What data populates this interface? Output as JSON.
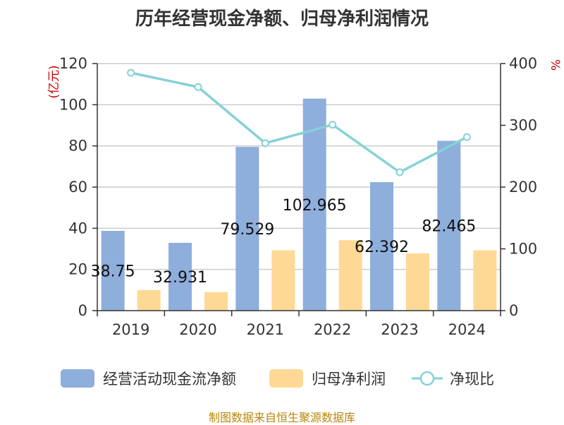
{
  "chart_data": {
    "type": "bar",
    "title": "历年经营现金净额、归母净利润情况",
    "categories": [
      "2019",
      "2020",
      "2021",
      "2022",
      "2023",
      "2024"
    ],
    "series": [
      {
        "name": "经营活动现金流净额",
        "type": "bar",
        "axis": "left",
        "color": "#8eaedc",
        "values": [
          38.75,
          32.931,
          79.529,
          102.965,
          62.392,
          82.465
        ]
      },
      {
        "name": "归母净利润",
        "type": "bar",
        "axis": "left",
        "color": "#fed995",
        "values": [
          10.0,
          9.0,
          29.3,
          34.2,
          27.8,
          29.3
        ]
      },
      {
        "name": "净现比",
        "type": "line",
        "axis": "right",
        "color": "#86d1d8",
        "values": [
          385,
          362,
          271,
          301,
          224,
          281
        ]
      }
    ],
    "data_labels": [
      "38.75",
      "32.931",
      "79.529",
      "102.965",
      "62.392",
      "82.465"
    ],
    "y_left": {
      "label": "(亿元)",
      "min": 0,
      "max": 120,
      "ticks": [
        0,
        20,
        40,
        60,
        80,
        100,
        120
      ]
    },
    "y_right": {
      "label": "%",
      "min": 0,
      "max": 400,
      "ticks": [
        0,
        100,
        200,
        300,
        400
      ]
    },
    "grid": true,
    "legend_position": "bottom"
  },
  "source": "制图数据来自恒生聚源数据库"
}
